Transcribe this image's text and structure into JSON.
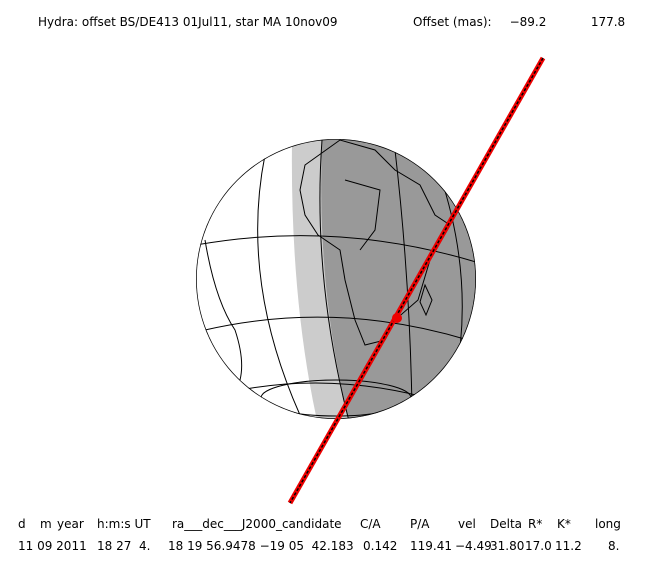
{
  "header": {
    "title": "Hydra: offset BS/DE413 01Jul11, star MA 10nov09",
    "offset_label": "Offset (mas):",
    "offsets": [
      "−89.2",
      "177.8"
    ]
  },
  "table": {
    "header": [
      "d",
      "m",
      "year",
      "h:m:s UT",
      "ra___dec___J2000_candidate",
      "C/A",
      "P/A",
      "vel",
      "Delta",
      "R*",
      "K*",
      "long"
    ],
    "rows": [
      [
        "11 09 2011",
        "18 27  4.",
        "18 19 56.9478 −19 05  42.183",
        "0.142",
        "119.41",
        "−4.49",
        "31.80",
        "17.0",
        "11.2",
        "8."
      ]
    ]
  }
}
